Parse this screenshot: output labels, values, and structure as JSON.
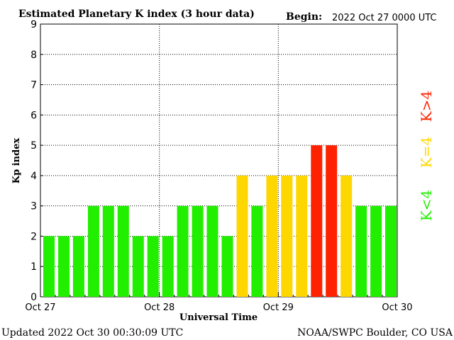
{
  "header": {
    "title": "Estimated Planetary K index (3 hour data)",
    "begin_label": "Begin:",
    "begin_value": "2022 Oct 27 0000 UTC"
  },
  "footer": {
    "updated": "Updated 2022 Oct 30 00:30:09 UTC",
    "source": "NOAA/SWPC Boulder, CO USA"
  },
  "colors": {
    "green": "#22ee00",
    "yellow": "#ffd700",
    "red": "#ff2200",
    "grid": "#000000"
  },
  "legend": {
    "red_label": "K>4",
    "yellow_label": "K=4",
    "green_label": "K<4"
  },
  "chart_data": {
    "type": "bar",
    "title": "Estimated Planetary K index (3 hour data)",
    "xlabel": "Universal Time",
    "ylabel": "Kp index",
    "ylim": [
      0,
      9
    ],
    "yticks": [
      "0",
      "1",
      "2",
      "3",
      "4",
      "5",
      "6",
      "7",
      "8",
      "9"
    ],
    "xticks": [
      "Oct 27",
      "Oct 28",
      "Oct 29",
      "Oct 30"
    ],
    "grid": true,
    "legend_position": "right",
    "values": [
      2,
      2,
      2,
      3,
      3,
      3,
      2,
      2,
      2,
      3,
      3,
      3,
      2,
      4,
      3,
      4,
      4,
      4,
      5,
      5,
      4,
      3,
      3,
      3
    ]
  }
}
